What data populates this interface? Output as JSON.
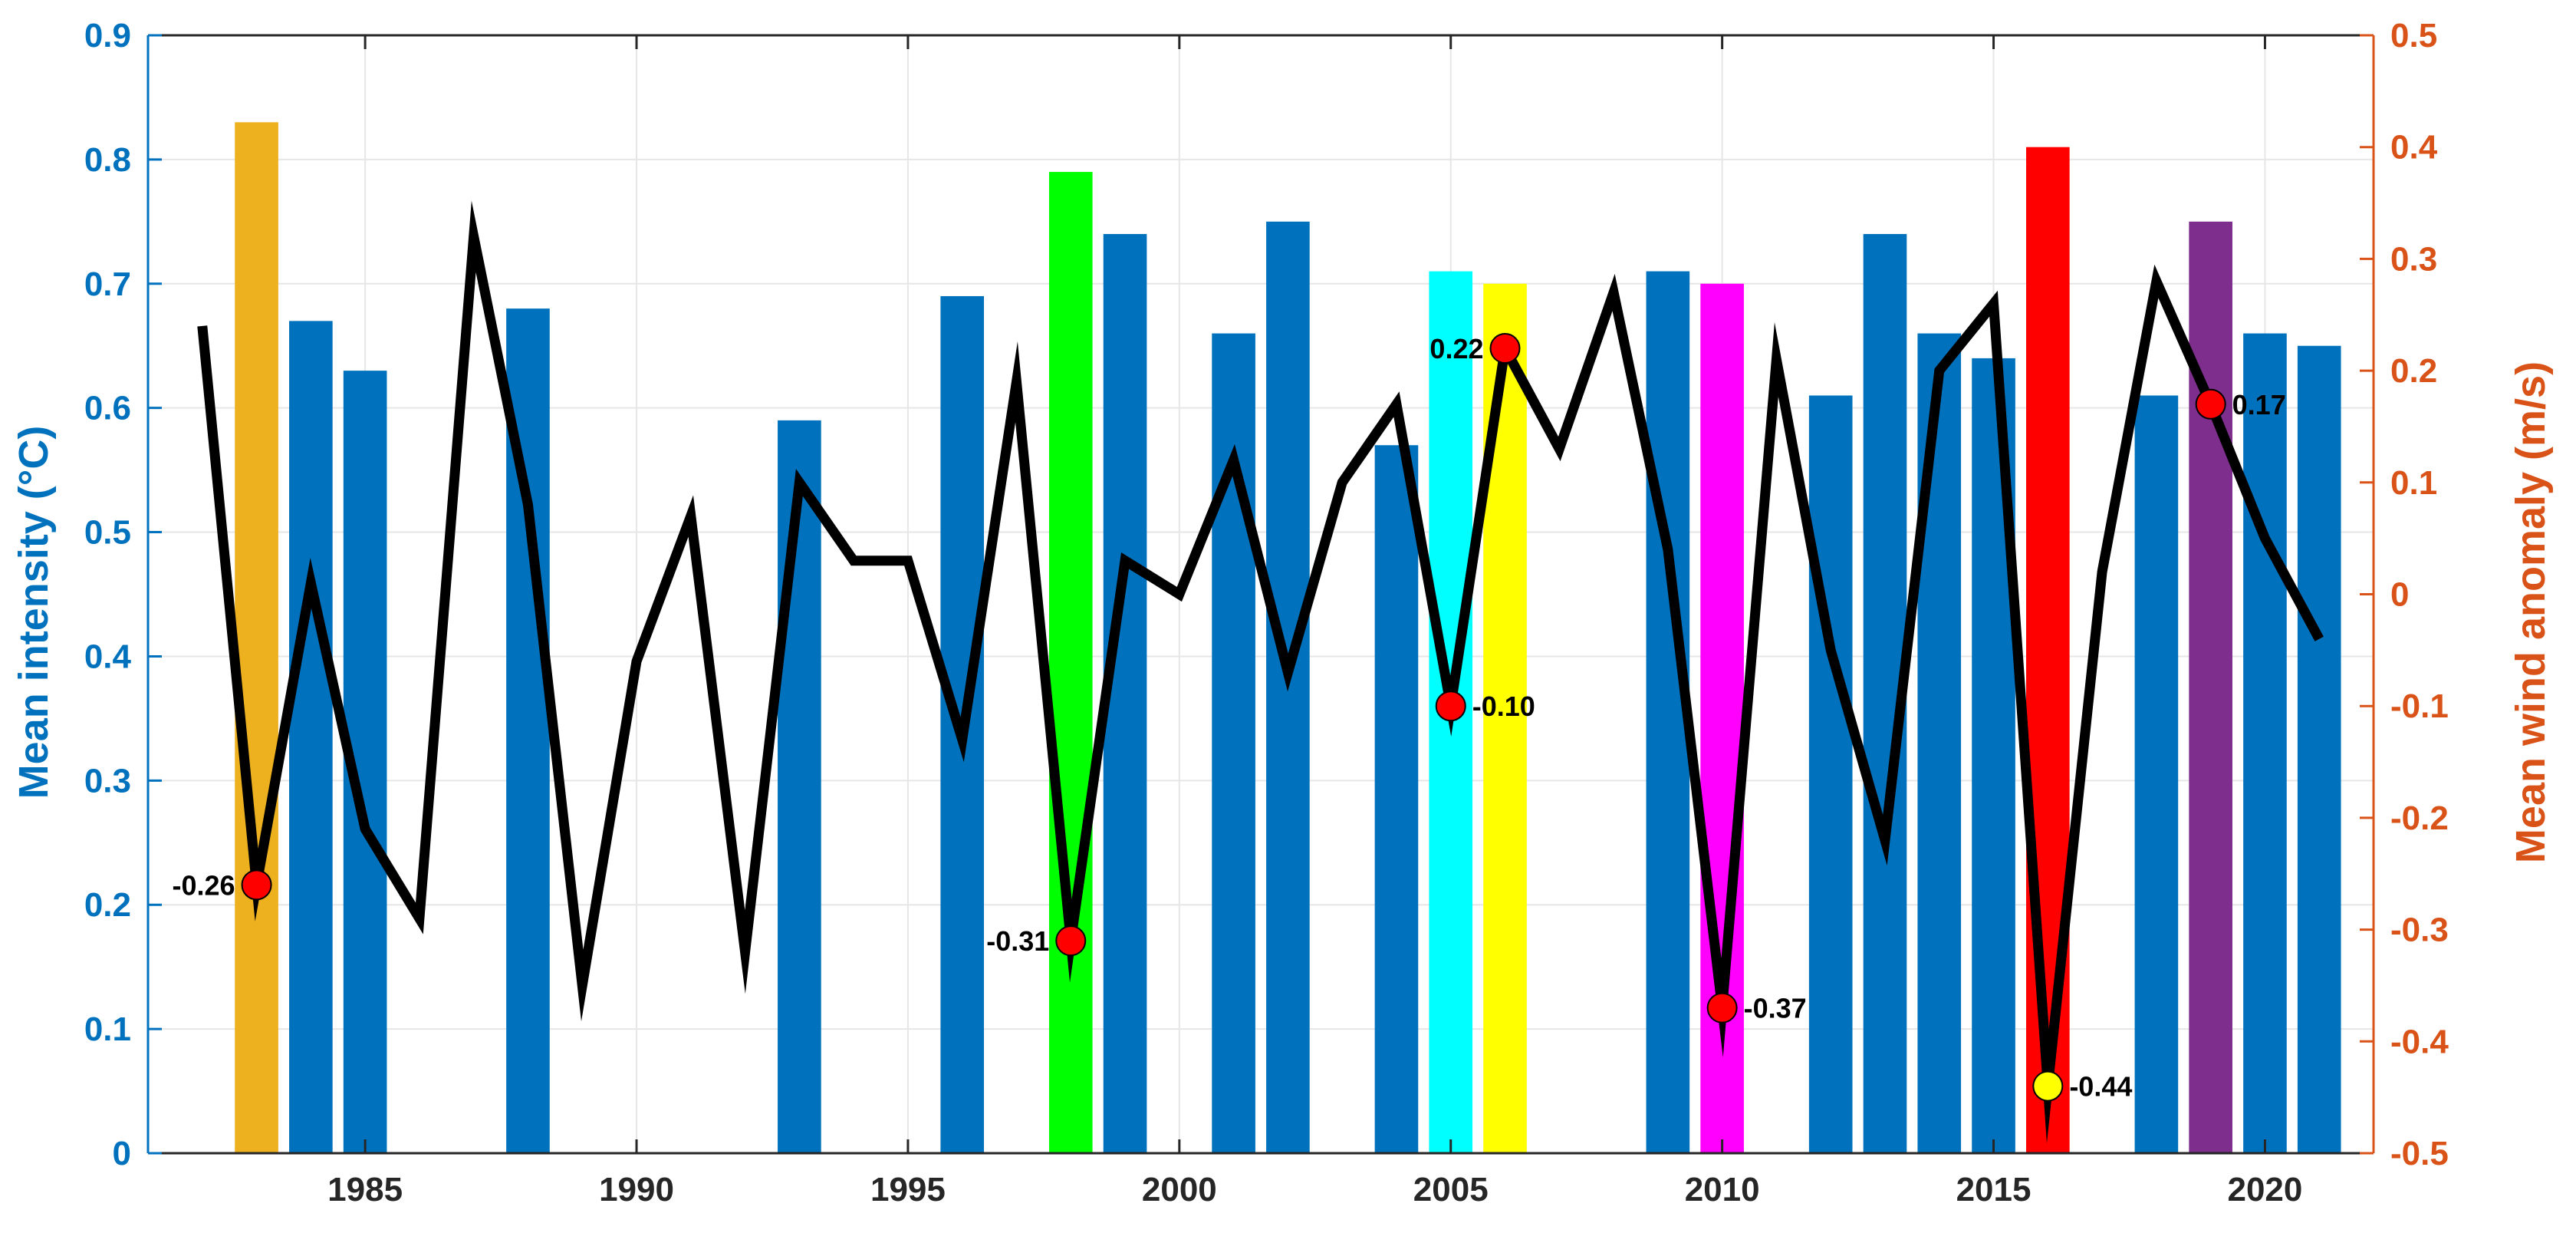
{
  "chart_data": {
    "type": "bar+line",
    "years": [
      1982,
      1983,
      1984,
      1985,
      1986,
      1987,
      1988,
      1989,
      1990,
      1991,
      1992,
      1993,
      1994,
      1995,
      1996,
      1997,
      1998,
      1999,
      2000,
      2001,
      2002,
      2003,
      2004,
      2005,
      2006,
      2007,
      2008,
      2009,
      2010,
      2011,
      2012,
      2013,
      2014,
      2015,
      2016,
      2017,
      2018,
      2019,
      2020,
      2021
    ],
    "bars": [
      {
        "year": 1983,
        "value": 0.83,
        "color": "#EDB120"
      },
      {
        "year": 1984,
        "value": 0.67,
        "color": "#0072BD"
      },
      {
        "year": 1985,
        "value": 0.63,
        "color": "#0072BD"
      },
      {
        "year": 1988,
        "value": 0.68,
        "color": "#0072BD"
      },
      {
        "year": 1993,
        "value": 0.59,
        "color": "#0072BD"
      },
      {
        "year": 1996,
        "value": 0.69,
        "color": "#0072BD"
      },
      {
        "year": 1998,
        "value": 0.79,
        "color": "#00FF00"
      },
      {
        "year": 1999,
        "value": 0.74,
        "color": "#0072BD"
      },
      {
        "year": 2001,
        "value": 0.66,
        "color": "#0072BD"
      },
      {
        "year": 2002,
        "value": 0.75,
        "color": "#0072BD"
      },
      {
        "year": 2004,
        "value": 0.57,
        "color": "#0072BD"
      },
      {
        "year": 2005,
        "value": 0.71,
        "color": "#00FFFF"
      },
      {
        "year": 2006,
        "value": 0.7,
        "color": "#FFFF00"
      },
      {
        "year": 2009,
        "value": 0.71,
        "color": "#0072BD"
      },
      {
        "year": 2010,
        "value": 0.7,
        "color": "#FF00FF"
      },
      {
        "year": 2012,
        "value": 0.61,
        "color": "#0072BD"
      },
      {
        "year": 2013,
        "value": 0.74,
        "color": "#0072BD"
      },
      {
        "year": 2014,
        "value": 0.66,
        "color": "#0072BD"
      },
      {
        "year": 2015,
        "value": 0.64,
        "color": "#0072BD"
      },
      {
        "year": 2016,
        "value": 0.81,
        "color": "#FF0000"
      },
      {
        "year": 2018,
        "value": 0.61,
        "color": "#0072BD"
      },
      {
        "year": 2019,
        "value": 0.75,
        "color": "#7E2F8E"
      },
      {
        "year": 2020,
        "value": 0.66,
        "color": "#0072BD"
      },
      {
        "year": 2021,
        "value": 0.65,
        "color": "#0072BD"
      }
    ],
    "wind_anomaly": [
      0.24,
      -0.26,
      0.01,
      -0.21,
      -0.29,
      0.32,
      0.08,
      -0.35,
      -0.06,
      0.07,
      -0.32,
      0.1,
      0.03,
      0.03,
      -0.13,
      0.19,
      -0.31,
      0.03,
      0.0,
      0.12,
      -0.07,
      0.1,
      0.17,
      -0.1,
      0.22,
      0.13,
      0.27,
      0.04,
      -0.37,
      0.21,
      -0.05,
      -0.22,
      0.2,
      0.26,
      -0.44,
      0.02,
      0.28,
      0.17,
      0.05,
      -0.04
    ],
    "highlighted_points": [
      {
        "year": 1983,
        "value": -0.26,
        "label": "-0.26",
        "color": "#FF0000",
        "label_side": "left"
      },
      {
        "year": 1998,
        "value": -0.31,
        "label": "-0.31",
        "color": "#FF0000",
        "label_side": "left"
      },
      {
        "year": 2005,
        "value": -0.1,
        "label": "-0.10",
        "color": "#FF0000",
        "label_side": "right"
      },
      {
        "year": 2006,
        "value": 0.22,
        "label": "0.22",
        "color": "#FF0000",
        "label_side": "left"
      },
      {
        "year": 2010,
        "value": -0.37,
        "label": "-0.37",
        "color": "#FF0000",
        "label_side": "right"
      },
      {
        "year": 2016,
        "value": -0.44,
        "label": "-0.44",
        "color": "#FFFF00",
        "label_side": "right"
      },
      {
        "year": 2019,
        "value": 0.17,
        "label": "0.17",
        "color": "#FF0000",
        "label_side": "right"
      }
    ],
    "x_ticks": [
      1985,
      1990,
      1995,
      2000,
      2005,
      2010,
      2015,
      2020
    ],
    "x_range": [
      1981,
      2022
    ],
    "y_left": {
      "label": "Mean intensity (°C)",
      "range": [
        0,
        0.9
      ],
      "ticks": [
        "0",
        "0.1",
        "0.2",
        "0.3",
        "0.4",
        "0.5",
        "0.6",
        "0.7",
        "0.8",
        "0.9"
      ],
      "color": "#0072BD"
    },
    "y_right": {
      "label": "Mean wind anomaly (m/s)",
      "range": [
        -0.5,
        0.5
      ],
      "ticks": [
        "-0.5",
        "-0.4",
        "-0.3",
        "-0.2",
        "-0.1",
        "0",
        "0.1",
        "0.2",
        "0.3",
        "0.4",
        "0.5"
      ],
      "color": "#D95319"
    },
    "grid": true,
    "line_color": "#000000"
  }
}
